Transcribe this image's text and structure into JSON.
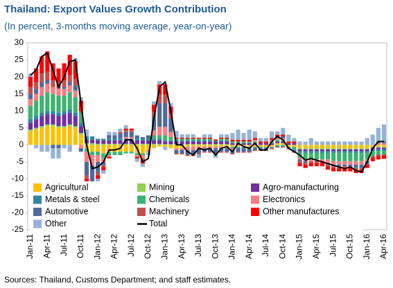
{
  "chart_data": {
    "type": "bar",
    "title": "Thailand: Export Values Growth Contribution",
    "subtitle": "(In percent, 3-months moving average, year-on-year)",
    "source": "Sources: Thailand, Customs Department; and staff estimates.",
    "categories": [
      "Jan-11",
      null,
      null,
      "Apr-11",
      null,
      null,
      "Jul-11",
      null,
      null,
      "Oct-11",
      null,
      null,
      "Jan-12",
      null,
      null,
      "Apr-12",
      null,
      null,
      "Jul-12",
      null,
      null,
      "Oct-12",
      null,
      null,
      "Jan-13",
      null,
      null,
      "Apr-13",
      null,
      null,
      "Jul-13",
      null,
      null,
      "Oct-13",
      null,
      null,
      "Jan-14",
      null,
      null,
      "Apr-14",
      null,
      null,
      "Jul-14",
      null,
      null,
      "Oct-14",
      null,
      null,
      "Jan-15",
      null,
      null,
      "Apr-15",
      null,
      null,
      "Jul-15",
      null,
      null,
      "Oct-15",
      null,
      null,
      "Jan-16",
      null,
      null,
      "Apr-16"
    ],
    "ylim": [
      -25,
      30
    ],
    "yticks": [
      30,
      25,
      20,
      15,
      10,
      5,
      0,
      -5,
      -10,
      -15,
      -20,
      -25
    ],
    "grid": false,
    "series": [
      {
        "name": "Agricultural",
        "color": "#ffc000",
        "values": [
          4,
          4.5,
          5,
          5.5,
          5.5,
          5,
          5,
          5.5,
          5,
          3,
          -1,
          -2,
          -2,
          -2.5,
          -2,
          -2,
          -2,
          -2,
          -2,
          -2.5,
          -2.5,
          -1.5,
          -1,
          -0.5,
          -0.5,
          -1,
          -1,
          -1,
          -0.5,
          -0.5,
          -0.5,
          -0.5,
          -0.5,
          -0.5,
          -0.5,
          -0.5,
          -0.5,
          -0.5,
          -0.5,
          -0.5,
          -0.5,
          -0.5,
          -0.5,
          -0.5,
          0.5,
          0.5,
          -0.5,
          -0.5,
          -1,
          -1,
          -1,
          -1,
          -1,
          -1,
          -1,
          -1,
          -1,
          -1,
          -1,
          -1,
          -1,
          -0.5,
          -0.5,
          -0.5
        ]
      },
      {
        "name": "Mining",
        "color": "#92d050",
        "values": [
          0.5,
          0.5,
          0.5,
          0.5,
          0.5,
          0.5,
          0.5,
          0.5,
          0.5,
          0.5,
          0.5,
          0.5,
          0.3,
          0.3,
          0.3,
          0.3,
          0.3,
          0.3,
          0.3,
          0.3,
          0.3,
          0.3,
          0.3,
          0.3,
          0.2,
          0.2,
          0.2,
          0.2,
          0.2,
          0.2,
          0.2,
          0.2,
          0.2,
          0.2,
          0.2,
          0.2,
          -0.2,
          -0.2,
          -0.2,
          -0.2,
          -0.2,
          -0.2,
          -0.2,
          -0.2,
          -0.2,
          -0.2,
          -0.2,
          -0.2,
          -0.3,
          -0.3,
          -0.3,
          -0.3,
          -0.3,
          -0.3,
          -0.3,
          -0.3,
          -0.3,
          -0.3,
          -0.3,
          -0.3,
          -0.3,
          -0.3,
          -0.3,
          -0.3
        ]
      },
      {
        "name": "Agro-manufacturing",
        "color": "#7030a0",
        "values": [
          2,
          2.5,
          3,
          3,
          3,
          3,
          3.5,
          3.5,
          3,
          2,
          1,
          1,
          1,
          1,
          1,
          1,
          1,
          1,
          1,
          1,
          1,
          1,
          1,
          1,
          0.8,
          0.8,
          0.8,
          0.8,
          0.8,
          0.8,
          0.8,
          0.8,
          0.8,
          0.8,
          0.8,
          0.8,
          0.5,
          0.5,
          0.5,
          0.5,
          0.5,
          0.5,
          0.5,
          0.5,
          0.5,
          0.5,
          0.5,
          0.5,
          -0.5,
          -0.5,
          -0.5,
          -0.5,
          -0.5,
          -0.5,
          -0.5,
          -0.5,
          -0.5,
          -0.5,
          -0.5,
          -0.5,
          -0.5,
          -0.5,
          -0.5,
          -0.5
        ]
      },
      {
        "name": "Metals & steel",
        "color": "#31859c",
        "values": [
          1,
          1,
          1,
          1,
          1,
          1,
          1,
          1,
          1,
          1,
          1,
          1,
          0.5,
          0.5,
          0.5,
          0.5,
          0.5,
          0.5,
          0.5,
          0.5,
          0.5,
          0.5,
          0.5,
          0.5,
          0.3,
          0.3,
          0.3,
          0.3,
          0.3,
          0.3,
          0.3,
          0.3,
          0.3,
          0.3,
          0.3,
          0.3,
          -0.3,
          -0.3,
          -0.3,
          -0.3,
          -0.3,
          -0.3,
          -0.3,
          -0.3,
          -0.3,
          -0.3,
          -0.3,
          -0.3,
          -0.5,
          -0.5,
          -0.5,
          -0.5,
          -0.5,
          -0.5,
          -0.5,
          -0.5,
          -0.5,
          -0.5,
          -0.5,
          -0.5,
          -0.5,
          -0.5,
          -0.5,
          -0.5
        ]
      },
      {
        "name": "Chemicals",
        "color": "#3cb371",
        "values": [
          4,
          4.5,
          5,
          5.5,
          5,
          5,
          4.5,
          5,
          4.5,
          3,
          -1,
          -1,
          -1,
          -1.5,
          -1,
          -1,
          -1,
          -0.5,
          -0.5,
          -0.5,
          -0.5,
          0,
          1,
          1,
          1.5,
          1,
          0.5,
          0.5,
          0.5,
          0.5,
          0.5,
          0.5,
          0.5,
          0,
          0.5,
          0.5,
          0.5,
          0.5,
          0.5,
          0.5,
          0.5,
          0,
          0,
          0.5,
          0.5,
          0.5,
          0,
          -0.5,
          -1.5,
          -2,
          -2,
          -2,
          -2,
          -2,
          -2.5,
          -2.5,
          -2.5,
          -2.5,
          -2.5,
          -2.5,
          -2,
          -1.5,
          -1,
          -1
        ]
      },
      {
        "name": "Electronics",
        "color": "#ff7c80",
        "values": [
          2,
          2,
          2.5,
          2.5,
          2,
          2,
          2,
          2,
          2,
          -1,
          -3,
          -3,
          -2,
          -1,
          -0.5,
          0,
          0,
          0.5,
          0.5,
          -0.5,
          -1,
          -0.5,
          1.5,
          2.5,
          2.5,
          1.5,
          -0.5,
          -0.5,
          -1,
          -1,
          -0.5,
          -0.5,
          -0.5,
          -0.5,
          -0.5,
          -0.5,
          -0.5,
          0,
          0,
          0,
          0.5,
          0,
          0,
          0.5,
          0.5,
          0.5,
          0,
          0,
          -0.5,
          -0.5,
          -0.5,
          -0.5,
          -0.5,
          -1,
          -1,
          -1,
          -1,
          -1,
          -1,
          -1,
          -0.5,
          0,
          0.5,
          0.5
        ]
      },
      {
        "name": "Automotive",
        "color": "#4f6a9a",
        "values": [
          1.5,
          1.5,
          1.5,
          1,
          -1,
          -1,
          0.5,
          1,
          1.5,
          -1,
          -4,
          -5,
          -3,
          -1,
          1,
          1,
          1.5,
          1.5,
          1.5,
          1,
          0.5,
          1,
          4,
          7,
          7,
          4,
          -1,
          -1,
          -1.5,
          -1.5,
          -1.5,
          -1,
          -1,
          -1.5,
          -1,
          -1,
          -1,
          -1,
          -1,
          -1,
          -0.5,
          -0.5,
          -0.5,
          0,
          0.5,
          0.5,
          0,
          -0.5,
          -0.5,
          -0.5,
          0,
          0,
          0,
          -0.5,
          -0.5,
          -0.5,
          -0.5,
          -0.5,
          -1,
          -1,
          -0.5,
          0,
          0.5,
          0.5
        ]
      },
      {
        "name": "Machinery",
        "color": "#c0504d",
        "values": [
          2,
          2,
          2.5,
          2.5,
          2,
          2,
          2,
          2,
          2,
          0.5,
          -1,
          -1.5,
          -1,
          -0.5,
          0,
          0,
          0.5,
          0.5,
          0.5,
          0,
          -0.5,
          0,
          1.5,
          2.5,
          2.5,
          1.5,
          -0.3,
          -0.3,
          -0.3,
          -0.3,
          -0.3,
          -0.3,
          -0.3,
          -0.3,
          -0.3,
          -0.3,
          -0.3,
          -0.3,
          -0.3,
          -0.3,
          -0.3,
          -0.3,
          -0.3,
          -0.3,
          -0.3,
          -0.3,
          -0.3,
          -0.3,
          -0.5,
          -0.5,
          -0.5,
          -0.5,
          -0.5,
          -0.5,
          -0.5,
          -0.5,
          -0.5,
          -0.5,
          -0.5,
          -0.5,
          -0.5,
          -0.5,
          -0.5,
          -0.3
        ]
      },
      {
        "name": "Other manufactures",
        "color": "#ff0000",
        "values": [
          3,
          4,
          5,
          6,
          5,
          4,
          5,
          6,
          5,
          3,
          -1,
          -1.5,
          -1,
          -1,
          -0.5,
          0,
          0,
          0.5,
          0.5,
          -0.5,
          -1,
          0,
          2,
          3,
          3,
          2,
          0.3,
          0.3,
          0.3,
          0.3,
          0.3,
          0.3,
          0.3,
          0.3,
          0.3,
          0.3,
          0.5,
          0.5,
          0.5,
          0.5,
          0.5,
          0.5,
          0.5,
          0.5,
          0.5,
          0.5,
          0.5,
          0.5,
          -1,
          -1,
          -1,
          -1,
          -1,
          -1,
          -1,
          -1,
          -1,
          -1,
          -1,
          -1,
          -1,
          -1,
          -1,
          -1
        ]
      },
      {
        "name": "Other",
        "color": "#95b3d7",
        "values": [
          1,
          -1,
          -2,
          -2,
          -3,
          -3,
          -1,
          -2,
          1,
          1,
          2,
          -2,
          -3,
          -1,
          1,
          1,
          1,
          1,
          0,
          -1,
          -1,
          -1,
          1,
          1,
          -1,
          1,
          2,
          1,
          1,
          1,
          -1,
          1,
          1,
          -1,
          1,
          1,
          2,
          3,
          2,
          3,
          2,
          1,
          1,
          2,
          1,
          2,
          2,
          1,
          1,
          1,
          2,
          1,
          1,
          1,
          1,
          1,
          1,
          1,
          1,
          1,
          2,
          3,
          4,
          5
        ]
      },
      {
        "name": "Total",
        "type": "line",
        "color": "#000000",
        "values": [
          20.5,
          22,
          26,
          27,
          22,
          17,
          20,
          24.5,
          25,
          12,
          0,
          -7,
          -6.5,
          -5,
          -1.5,
          -1.5,
          -1,
          1.5,
          1.5,
          -1,
          -5,
          -4,
          8,
          17,
          18.5,
          10,
          0,
          0,
          -2,
          -3,
          -1,
          -1.5,
          -1,
          -3,
          -1,
          -0.5,
          -2,
          0.5,
          -0.5,
          -1,
          0.5,
          -1.5,
          -1.5,
          1,
          2.5,
          1.5,
          -1,
          -2,
          -3,
          -4.5,
          -4,
          -4.5,
          -5,
          -5.5,
          -6,
          -6.5,
          -7,
          -6.5,
          -7.5,
          -8,
          -5,
          -1,
          1,
          1
        ]
      }
    ]
  }
}
